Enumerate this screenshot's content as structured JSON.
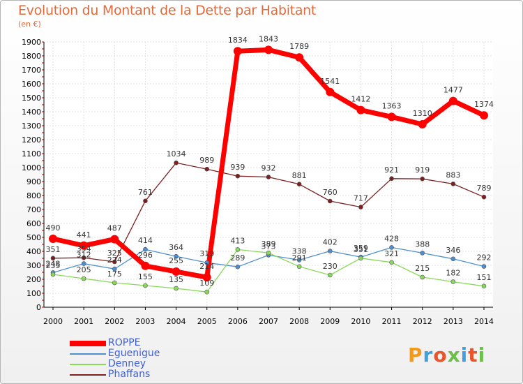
{
  "chart_data": {
    "type": "line",
    "title": "Evolution du Montant de la Dette par Habitant",
    "subtitle": "(en €)",
    "x": [
      "2000",
      "2001",
      "2002",
      "2003",
      "2004",
      "2005",
      "2006",
      "2007",
      "2008",
      "2009",
      "2010",
      "2011",
      "2012",
      "2013",
      "2014"
    ],
    "ylim": [
      0,
      1900
    ],
    "yticks": [
      0,
      100,
      200,
      300,
      400,
      500,
      600,
      700,
      800,
      900,
      1000,
      1100,
      1200,
      1300,
      1400,
      1500,
      1600,
      1700,
      1800,
      1900
    ],
    "grid": true,
    "legend_placement": "bottom-left",
    "series": [
      {
        "name": "ROPPE",
        "color": "#ff0000",
        "values": [
          490,
          441,
          487,
          296,
          255,
          214,
          1834,
          1843,
          1789,
          1541,
          1412,
          1363,
          1310,
          1477,
          1374
        ],
        "labels": [
          "490",
          "441",
          "487",
          "296",
          "255",
          "214",
          "1834",
          "1843",
          "1789",
          "1541",
          "1412",
          "1363",
          "1310",
          "1477",
          "1374"
        ]
      },
      {
        "name": "Eguenigue",
        "color": "#4f8fd0",
        "values": [
          248,
          312,
          274,
          414,
          364,
          319,
          289,
          373,
          338,
          402,
          359,
          428,
          388,
          346,
          292
        ],
        "labels": [
          "248",
          "312",
          "274",
          "414",
          "364",
          "319",
          "289",
          "373",
          "338",
          "402",
          "359",
          "428",
          "388",
          "346",
          "292"
        ]
      },
      {
        "name": "Denney",
        "color": "#8ad85a",
        "values": [
          235,
          205,
          175,
          155,
          135,
          109,
          413,
          389,
          291,
          230,
          351,
          321,
          215,
          182,
          151
        ],
        "labels": [
          "235",
          "205",
          "175",
          "155",
          "135",
          "109",
          "413",
          "389",
          "291",
          "230",
          "351",
          "321",
          "215",
          "182",
          "151"
        ]
      },
      {
        "name": "Phaffans",
        "color": "#7a2020",
        "values": [
          351,
          354,
          325,
          761,
          1034,
          989,
          939,
          932,
          881,
          760,
          717,
          921,
          919,
          883,
          789
        ],
        "labels": [
          "351",
          "354",
          "325",
          "761",
          "1034",
          "989",
          "939",
          "932",
          "881",
          "760",
          "717",
          "921",
          "919",
          "883",
          "789"
        ]
      }
    ]
  },
  "logo_text": "Proxiti"
}
